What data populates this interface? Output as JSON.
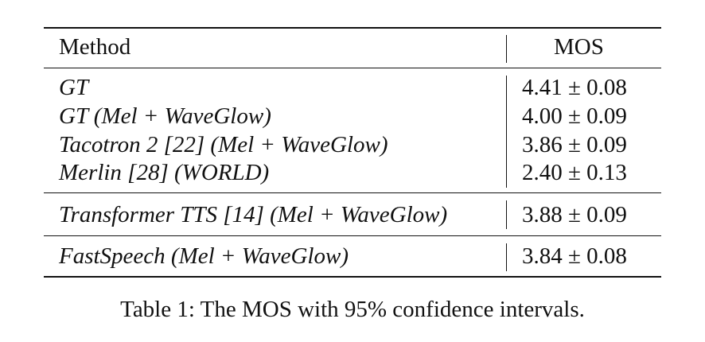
{
  "table": {
    "headers": {
      "method": "Method",
      "mos": "MOS"
    },
    "groups": [
      {
        "rows": [
          {
            "method": "GT",
            "mos": "4.41 ± 0.08"
          },
          {
            "method": "GT (Mel + WaveGlow)",
            "mos": "4.00 ± 0.09"
          },
          {
            "method": "Tacotron 2 [22] (Mel + WaveGlow)",
            "mos": "3.86 ± 0.09"
          },
          {
            "method": "Merlin [28] (WORLD)",
            "mos": "2.40 ± 0.13"
          }
        ]
      },
      {
        "rows": [
          {
            "method": "Transformer TTS [14] (Mel + WaveGlow)",
            "mos": "3.88 ± 0.09"
          }
        ]
      },
      {
        "rows": [
          {
            "method": "FastSpeech (Mel + WaveGlow)",
            "mos": "3.84 ± 0.08"
          }
        ]
      }
    ]
  },
  "caption": "Table 1: The MOS with 95% confidence intervals."
}
